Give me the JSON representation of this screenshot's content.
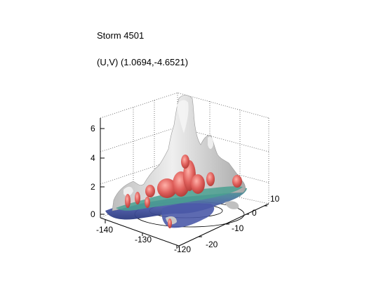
{
  "chart_data": {
    "type": "surface3d",
    "title": "Storm 4501",
    "subtitle": "(U,V) (1.0694,-4.6521)",
    "x_axis": {
      "ticks": [
        "-140",
        "-130",
        "-120"
      ],
      "range": [
        -140,
        -120
      ]
    },
    "y_axis": {
      "ticks": [
        "-20",
        "-10",
        "0",
        "10"
      ],
      "range": [
        -20,
        10
      ]
    },
    "z_axis": {
      "ticks": [
        "0",
        "2",
        "4",
        "6"
      ],
      "range": [
        0,
        6.5
      ]
    },
    "grid": true,
    "colors": {
      "surface": "#d9d9d9",
      "surface_shadow": "#a6a6a6",
      "core": "#e0605c",
      "mid": "#4aa090",
      "low": "#4b5aa8"
    }
  }
}
